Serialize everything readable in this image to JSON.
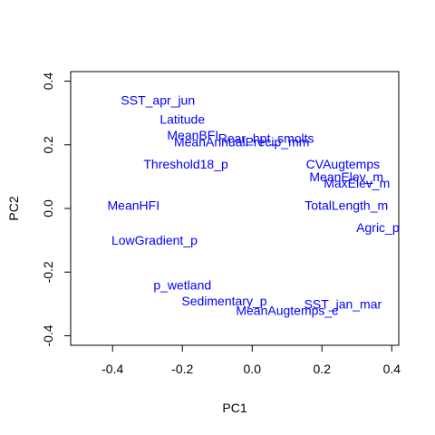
{
  "chart_data": {
    "type": "scatter",
    "title": "",
    "xlabel": "PC1",
    "ylabel": "PC2",
    "xlim": [
      -0.52,
      0.42
    ],
    "ylim": [
      -0.43,
      0.43
    ],
    "x_ticks": [
      -0.4,
      -0.2,
      0.0,
      0.2,
      0.4
    ],
    "x_tick_labels": [
      "-0.4",
      "-0.2",
      "0.0",
      "0.2",
      "0.4"
    ],
    "y_ticks": [
      -0.4,
      -0.2,
      0.0,
      0.2,
      0.4
    ],
    "y_tick_labels": [
      "-0.4",
      "-0.2",
      "0.0",
      "0.2",
      "0.4"
    ],
    "grid": false,
    "label_color": "#0000ff",
    "points": [
      {
        "label": "SST_apr_jun",
        "x": -0.27,
        "y": 0.34
      },
      {
        "label": "Latitude",
        "x": -0.2,
        "y": 0.28
      },
      {
        "label": "MeanBFI",
        "x": -0.17,
        "y": 0.23
      },
      {
        "label": "MeanAnnualPrecip_mm",
        "x": -0.03,
        "y": 0.21
      },
      {
        "label": "Rear_hpt_smolts",
        "x": 0.04,
        "y": 0.22
      },
      {
        "label": "Threshold18_p",
        "x": -0.19,
        "y": 0.14
      },
      {
        "label": "CVAugtemps",
        "x": 0.26,
        "y": 0.14
      },
      {
        "label": "MeanElev_m",
        "x": 0.27,
        "y": 0.1
      },
      {
        "label": "MaxElev_m",
        "x": 0.3,
        "y": 0.08
      },
      {
        "label": "MeanHFI",
        "x": -0.34,
        "y": 0.01
      },
      {
        "label": "TotalLength_m",
        "x": 0.27,
        "y": 0.01
      },
      {
        "label": "Agric_p",
        "x": 0.36,
        "y": -0.06
      },
      {
        "label": "LowGradient_p",
        "x": -0.28,
        "y": -0.1
      },
      {
        "label": "p_wetland",
        "x": -0.2,
        "y": -0.24
      },
      {
        "label": "Sedimentary_p",
        "x": -0.08,
        "y": -0.29
      },
      {
        "label": "SST_jan_mar",
        "x": 0.26,
        "y": -0.3
      },
      {
        "label": "MeanAugtemps_c",
        "x": 0.1,
        "y": -0.32
      }
    ]
  }
}
